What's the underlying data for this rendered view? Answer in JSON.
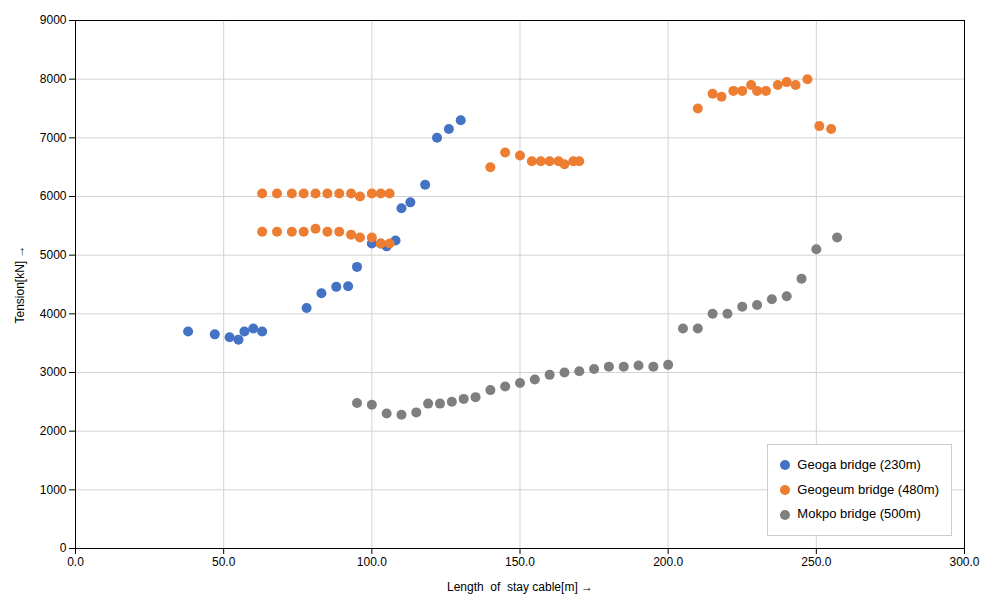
{
  "chart_data": {
    "type": "scatter",
    "xlabel": "Length  of  stay cable[m]",
    "ylabel": "Tension[kN]",
    "xlim": [
      0.0,
      300.0
    ],
    "ylim": [
      0,
      9000
    ],
    "xticks": [
      {
        "value": 0,
        "label": "0.0"
      },
      {
        "value": 50,
        "label": "50.0"
      },
      {
        "value": 100,
        "label": "100.0"
      },
      {
        "value": 150,
        "label": "150.0"
      },
      {
        "value": 200,
        "label": "200.0"
      },
      {
        "value": 250,
        "label": "250.0"
      },
      {
        "value": 300,
        "label": "300.0"
      }
    ],
    "yticks": [
      0,
      1000,
      2000,
      3000,
      4000,
      5000,
      6000,
      7000,
      8000,
      9000
    ],
    "grid": true,
    "legend": "lower right",
    "series": [
      {
        "name": "Geoga bridge (230m)",
        "color": "#4472c4",
        "x": [
          38,
          47,
          52,
          55,
          57,
          60,
          63,
          78,
          83,
          88,
          92,
          95,
          100,
          103,
          105,
          108,
          110,
          113,
          118,
          122,
          126,
          130
        ],
        "values": [
          3700,
          3650,
          3600,
          3560,
          3700,
          3750,
          3700,
          4100,
          4350,
          4460,
          4470,
          4800,
          5200,
          5200,
          5150,
          5250,
          5800,
          5900,
          6200,
          7000,
          7150,
          7300
        ]
      },
      {
        "name": "Geogeum bridge (480m)",
        "color": "#ed7d31",
        "x": [
          63,
          68,
          73,
          77,
          81,
          85,
          89,
          93,
          96,
          100,
          103,
          106,
          63,
          68,
          73,
          77,
          81,
          85,
          89,
          93,
          96,
          100,
          103,
          106,
          140,
          145,
          150,
          154,
          157,
          160,
          163,
          165,
          168,
          170,
          210,
          215,
          218,
          222,
          225,
          228,
          230,
          233,
          237,
          240,
          243,
          247,
          251,
          255
        ],
        "values": [
          5400,
          5400,
          5400,
          5400,
          5450,
          5400,
          5400,
          5350,
          5300,
          5300,
          5200,
          5200,
          6050,
          6050,
          6050,
          6050,
          6050,
          6050,
          6050,
          6050,
          6000,
          6050,
          6050,
          6050,
          6500,
          6750,
          6700,
          6600,
          6600,
          6600,
          6600,
          6550,
          6600,
          6600,
          7500,
          7750,
          7700,
          7800,
          7800,
          7900,
          7800,
          7800,
          7900,
          7950,
          7900,
          8000,
          7200,
          7150
        ]
      },
      {
        "name": "Mokpo bridge (500m)",
        "color": "#7f7f7f",
        "x": [
          95,
          100,
          105,
          110,
          115,
          119,
          123,
          127,
          131,
          135,
          140,
          145,
          150,
          155,
          160,
          165,
          170,
          175,
          180,
          185,
          190,
          195,
          200,
          205,
          210,
          215,
          220,
          225,
          230,
          235,
          240,
          245,
          250,
          257
        ],
        "values": [
          2480,
          2450,
          2300,
          2280,
          2320,
          2470,
          2470,
          2500,
          2550,
          2580,
          2700,
          2760,
          2820,
          2880,
          2960,
          3000,
          3020,
          3060,
          3100,
          3100,
          3120,
          3100,
          3130,
          3750,
          3750,
          4000,
          4000,
          4120,
          4150,
          4250,
          4300,
          4600,
          5100,
          5300
        ]
      }
    ]
  }
}
